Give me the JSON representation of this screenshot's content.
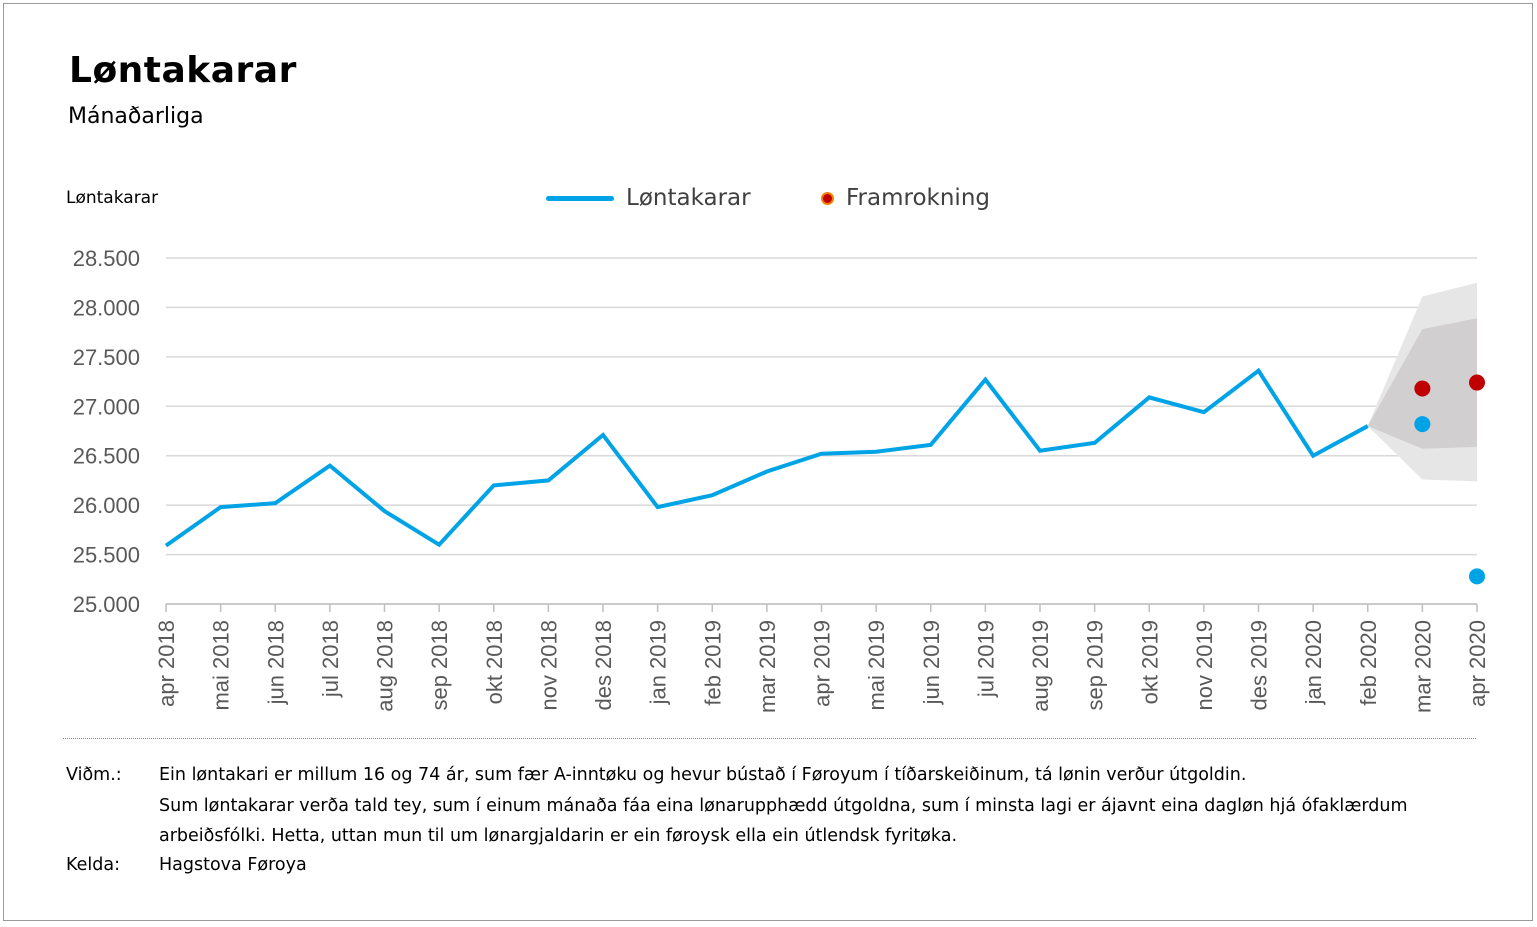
{
  "chart_data": {
    "type": "line",
    "title": "Løntakarar",
    "subtitle": "Mánaðarliga",
    "ylabel": "Løntakarar",
    "xlabel": "",
    "ylim": [
      25000,
      28500
    ],
    "yticks": [
      25000,
      25500,
      26000,
      26500,
      27000,
      27500,
      28000,
      28500
    ],
    "ytick_labels": [
      "25.000",
      "25.500",
      "26.000",
      "26.500",
      "27.000",
      "27.500",
      "28.000",
      "28.500"
    ],
    "grid": true,
    "legend_position": "top-center",
    "categories": [
      "apr 2018",
      "mai 2018",
      "jun 2018",
      "jul 2018",
      "aug 2018",
      "sep 2018",
      "okt 2018",
      "nov 2018",
      "des 2018",
      "jan 2019",
      "feb 2019",
      "mar 2019",
      "apr 2019",
      "mai 2019",
      "jun 2019",
      "jul 2019",
      "aug 2019",
      "sep 2019",
      "okt 2019",
      "nov 2019",
      "des 2019",
      "jan 2020",
      "feb 2020",
      "mar 2020",
      "apr 2020"
    ],
    "series": [
      {
        "name": "Løntakarar",
        "color": "#00a3e6",
        "values": [
          25590,
          25980,
          26020,
          26400,
          25940,
          25600,
          26200,
          26250,
          26710,
          25980,
          26100,
          26340,
          26520,
          26540,
          26610,
          27270,
          26550,
          26630,
          27090,
          26940,
          27360,
          26500,
          26800,
          null,
          null
        ],
        "points": [
          {
            "x": "mar 2020",
            "y": 26820
          },
          {
            "x": "apr 2020",
            "y": 25280
          }
        ]
      },
      {
        "name": "Framrokning",
        "color": "#c00000",
        "points": [
          {
            "x": "mar 2020",
            "y": 27180
          },
          {
            "x": "apr 2020",
            "y": 27240
          }
        ]
      }
    ],
    "bands": [
      {
        "name": "outer",
        "color": "#e6e6e6",
        "x": [
          "feb 2020",
          "mar 2020",
          "apr 2020"
        ],
        "upper": [
          26800,
          28110,
          28250
        ],
        "lower": [
          26800,
          26260,
          26240
        ]
      },
      {
        "name": "inner",
        "color": "#d1cfcf",
        "x": [
          "feb 2020",
          "mar 2020",
          "apr 2020"
        ],
        "upper": [
          26800,
          27780,
          27890
        ],
        "lower": [
          26800,
          26570,
          26590
        ]
      }
    ]
  },
  "notes": {
    "label": "Viðm.:",
    "lines": [
      "Ein løntakari er millum 16 og 74 ár, sum fær A-inntøku og hevur bústað í Føroyum í tíðarskeiðinum, tá lønin verður útgoldin.",
      "Sum løntakarar verða tald tey, sum í einum mánaða fáa eina lønarupphædd útgoldna, sum í minsta lagi er ájavnt eina dagløn hjá ófaklærdum",
      "arbeiðsfólki. Hetta, uttan mun til um lønargjaldarin er ein føroysk ella ein útlendsk fyritøka."
    ],
    "source_label": "Kelda:",
    "source": "Hagstova Føroya"
  }
}
